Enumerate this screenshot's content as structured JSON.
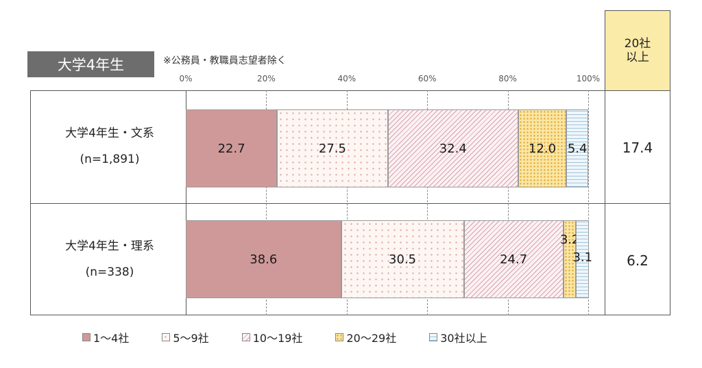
{
  "header": {
    "badge": "大学4年生",
    "note": "※公務員・教職員志望者除く",
    "right_col_line1": "20社",
    "right_col_line2": "以上"
  },
  "chart_data": {
    "type": "bar",
    "orientation": "horizontal",
    "stacked": true,
    "title": "",
    "xlim": [
      0,
      100
    ],
    "x_ticks": [
      "0%",
      "20%",
      "40%",
      "60%",
      "80%",
      "100%"
    ],
    "categories": [
      "大学4年生・文系",
      "大学4年生・理系"
    ],
    "category_n": [
      "(n=1,891)",
      "(n=338)"
    ],
    "series": [
      {
        "name": "1～4社",
        "values": [
          22.7,
          38.6
        ],
        "labels": [
          "22.7",
          "38.6"
        ]
      },
      {
        "name": "5～9社",
        "values": [
          27.5,
          30.5
        ],
        "labels": [
          "27.5",
          "30.5"
        ]
      },
      {
        "name": "10～19社",
        "values": [
          32.4,
          24.7
        ],
        "labels": [
          "32.4",
          "24.7"
        ]
      },
      {
        "name": "20～29社",
        "values": [
          12.0,
          3.2
        ],
        "labels": [
          "12.0",
          "3.2"
        ]
      },
      {
        "name": "30社以上",
        "values": [
          5.4,
          3.1
        ],
        "labels": [
          "5.4",
          "3.1"
        ]
      }
    ],
    "right_column_values": [
      "17.4",
      "6.2"
    ],
    "colors": [
      "#cf9999",
      "#fdf6f3",
      "#fbf1f3",
      "#fbe6a6",
      "#eef6fb"
    ],
    "legend_position": "bottom",
    "grid": true
  }
}
